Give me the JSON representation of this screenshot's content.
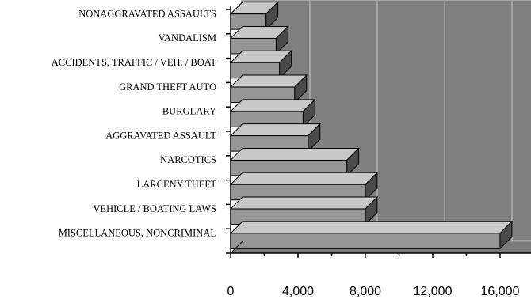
{
  "chart_data": {
    "type": "bar",
    "orientation": "horizontal",
    "style": "3d",
    "categories": [
      "NONAGGRAVATED ASSAULTS",
      "VANDALISM",
      "ACCIDENTS, TRAFFIC / VEH. / BOAT",
      "GRAND THEFT AUTO",
      "BURGLARY",
      "AGGRAVATED ASSAULT",
      "NARCOTICS",
      "LARCENY THEFT",
      "VEHICLE / BOATING LAWS",
      "MISCELLANEOUS, NONCRIMINAL"
    ],
    "values": [
      2100,
      2700,
      2900,
      3800,
      4300,
      4600,
      6900,
      8000,
      8000,
      16000
    ],
    "xlim": [
      0,
      18000
    ],
    "x_ticks": [
      "0",
      "4,000",
      "8,000",
      "12,000",
      "16,000"
    ],
    "x_tick_values": [
      0,
      4000,
      8000,
      12000,
      16000
    ],
    "title": "",
    "xlabel": "",
    "ylabel": "",
    "grid": true,
    "legend": "none",
    "colors": {
      "plot_wall": "#808080",
      "plot_floor": "#7a7a7a",
      "wall_border": "#a6a6a6",
      "gridline": "#b3b3b3",
      "bar_front": "#969696",
      "bar_top": "#c8c8c8",
      "bar_side": "#4a4a4a",
      "axis": "#000000",
      "background": "#ffffff"
    }
  }
}
